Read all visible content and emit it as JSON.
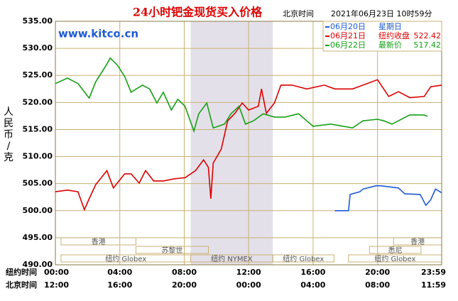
{
  "chart_data": {
    "type": "line",
    "title": "24小时钯金现货买入价格",
    "time_label": "北京时间",
    "timestamp": "2021年06月23日 10时59分",
    "site": "www.kitco.cn",
    "ylabel": "人民币/克",
    "xlabel": "纽约时间",
    "xlabel2": "北京时间",
    "xlim": [
      0,
      23.983
    ],
    "ylim": [
      490,
      535
    ],
    "yticks": [
      {
        "value": 490,
        "label": "490.00"
      },
      {
        "value": 495,
        "label": "495.00"
      },
      {
        "value": 500,
        "label": "500.00"
      },
      {
        "value": 505,
        "label": "505.00"
      },
      {
        "value": 510,
        "label": "510.00"
      },
      {
        "value": 515,
        "label": "515.00"
      },
      {
        "value": 520,
        "label": "520.00"
      },
      {
        "value": 525,
        "label": "525.00"
      },
      {
        "value": 530,
        "label": "530.00"
      },
      {
        "value": 535,
        "label": "535.00"
      }
    ],
    "xticks": [
      {
        "value": 0,
        "label": "00:00"
      },
      {
        "value": 4,
        "label": "04:00"
      },
      {
        "value": 8,
        "label": "08:00"
      },
      {
        "value": 12,
        "label": "12:00"
      },
      {
        "value": 16,
        "label": "16:00"
      },
      {
        "value": 20,
        "label": "20:00"
      },
      {
        "value": 23.983,
        "label": "23:59"
      }
    ],
    "xticks2": [
      {
        "value": 0,
        "label": "12:00"
      },
      {
        "value": 4,
        "label": "16:00"
      },
      {
        "value": 8,
        "label": "20:00"
      },
      {
        "value": 12,
        "label": "00:00"
      },
      {
        "value": 16,
        "label": "04:00"
      },
      {
        "value": 20,
        "label": "08:00"
      },
      {
        "value": 23.983,
        "label": "11:59"
      }
    ],
    "grid": true,
    "highlight": {
      "start": 8.4,
      "end": 13.5
    },
    "sessions": [
      [
        {
          "name": "香港",
          "start": 0.35,
          "end": 5.0
        },
        {
          "name": "香港",
          "start": 21.0,
          "end": 23.983
        }
      ],
      [
        {
          "name": "苏黎世",
          "start": 5.0,
          "end": 9.5
        },
        {
          "name": "悉尼",
          "start": 19.5,
          "end": 22.7
        }
      ],
      [
        {
          "name": "纽约 Globex",
          "start": 0.35,
          "end": 8.4
        },
        {
          "name": "纽约 NYMEX",
          "start": 8.4,
          "end": 13.5
        },
        {
          "name": "纽约 Globex",
          "start": 13.5,
          "end": 17.3
        },
        {
          "name": "纽约 Globex",
          "start": 18.2,
          "end": 23.983
        }
      ]
    ],
    "series": [
      {
        "name": "06月20日",
        "color": "#1e5ad2",
        "note": "星期日",
        "x": [
          17.35,
          18.2,
          18.3,
          18.9,
          19.1,
          19.9,
          20.2,
          21.3,
          21.7,
          22.65,
          23.0,
          23.3,
          23.6,
          23.983
        ],
        "values": [
          500,
          500,
          503,
          503.5,
          504,
          504.6,
          504.6,
          504.2,
          503.1,
          503,
          501,
          502,
          504,
          503.3
        ]
      },
      {
        "name": "06月21日",
        "color": "#dc0000",
        "note": "纽约收盘",
        "note_value": 522.42,
        "x": [
          0,
          0.75,
          1.4,
          1.8,
          2.1,
          2.5,
          3.2,
          3.6,
          4.3,
          4.7,
          5.2,
          5.6,
          6.1,
          6.7,
          7.4,
          8.05,
          8.7,
          9.2,
          9.5,
          9.65,
          9.8,
          10.3,
          10.7,
          11.15,
          11.6,
          12.0,
          12.6,
          12.8,
          13.1,
          13.6,
          14.0,
          14.7,
          15.6,
          16.7,
          17.35,
          18.45,
          19.1,
          20.0,
          20.7,
          21.3,
          22.0,
          22.9,
          23.3,
          23.983
        ],
        "values": [
          503.5,
          503.8,
          503.5,
          500.2,
          502.2,
          504.8,
          507.4,
          504.2,
          506.8,
          506.8,
          505.1,
          507.4,
          505.5,
          505.5,
          505.9,
          506.1,
          507.4,
          509.4,
          508,
          502.2,
          508.8,
          511.4,
          516.6,
          518,
          519.9,
          518.6,
          519.3,
          522.5,
          518,
          519.9,
          523.2,
          523.2,
          522.5,
          523.2,
          522.5,
          522.5,
          523.2,
          524.2,
          521.1,
          522,
          520.9,
          521.1,
          522.9,
          523.2
        ]
      },
      {
        "name": "06月22日",
        "color": "#14a014",
        "note": "最新价",
        "note_value": 517.42,
        "x": [
          0,
          0.75,
          1.4,
          2.1,
          2.5,
          3.2,
          3.4,
          3.85,
          4.3,
          4.7,
          5.4,
          5.85,
          6.3,
          6.7,
          7.2,
          7.6,
          8.05,
          8.6,
          8.9,
          9.4,
          9.8,
          10.5,
          10.9,
          11.4,
          11.8,
          12.3,
          12.9,
          13.6,
          14.25,
          15.1,
          15.6,
          16.0,
          17.1,
          18.45,
          19.1,
          20.0,
          20.4,
          20.9,
          22.0,
          22.9,
          23.1
        ],
        "values": [
          523.5,
          524.5,
          523.5,
          520.8,
          523.8,
          527.1,
          528.2,
          526.9,
          524.8,
          521.9,
          523.2,
          522.5,
          519.9,
          521.9,
          518.6,
          520.6,
          519.3,
          514.7,
          517.9,
          519.9,
          515.3,
          516,
          517.9,
          519.3,
          516,
          516.6,
          517.9,
          517.3,
          517.3,
          517.9,
          516.6,
          515.6,
          516,
          515.3,
          516.6,
          516.9,
          516.6,
          516,
          517.7,
          517.7,
          517.42
        ]
      }
    ]
  }
}
